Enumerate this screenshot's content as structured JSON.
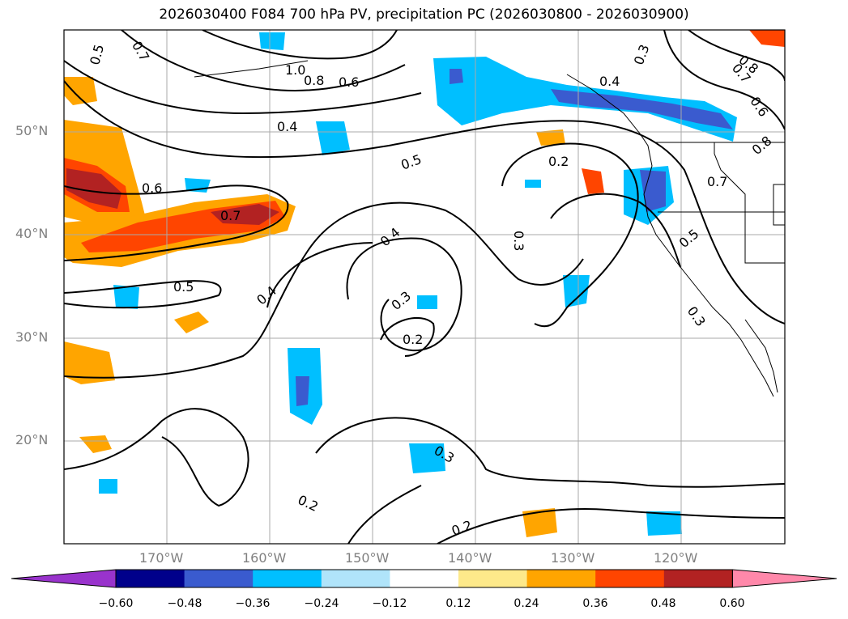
{
  "title": "2026030400 F084 700 hPa PV, precipitation PC (2026030800 - 2026030900)",
  "map": {
    "lat_labels": [
      "50°N",
      "40°N",
      "30°N",
      "20°N"
    ],
    "lon_labels": [
      "170°W",
      "160°W",
      "150°W",
      "140°W",
      "130°W",
      "120°W"
    ],
    "contour_labels": [
      "0.5",
      "0.7",
      "1.0",
      "0.8",
      "0.6",
      "0.4",
      "0.3",
      "0.4",
      "0.8",
      "0.7",
      "0.6",
      "0.8",
      "0.6",
      "0.7",
      "0.7",
      "0.5",
      "0.2",
      "0.3",
      "0.5",
      "0.4",
      "0.5",
      "0.4",
      "0.3",
      "0.2",
      "0.3",
      "0.2",
      "0.2",
      "0.3"
    ]
  },
  "colorbar": {
    "ticks": [
      "−0.60",
      "−0.48",
      "−0.36",
      "−0.24",
      "−0.12",
      "0.12",
      "0.24",
      "0.36",
      "0.48",
      "0.60"
    ],
    "colors": [
      "#9933cc",
      "#00008b",
      "#3a5bcf",
      "#00bfff",
      "#b0e4fa",
      "#ffffff",
      "#fde98a",
      "#ffa500",
      "#ff4500",
      "#b22222",
      "#ff88aa"
    ]
  }
}
